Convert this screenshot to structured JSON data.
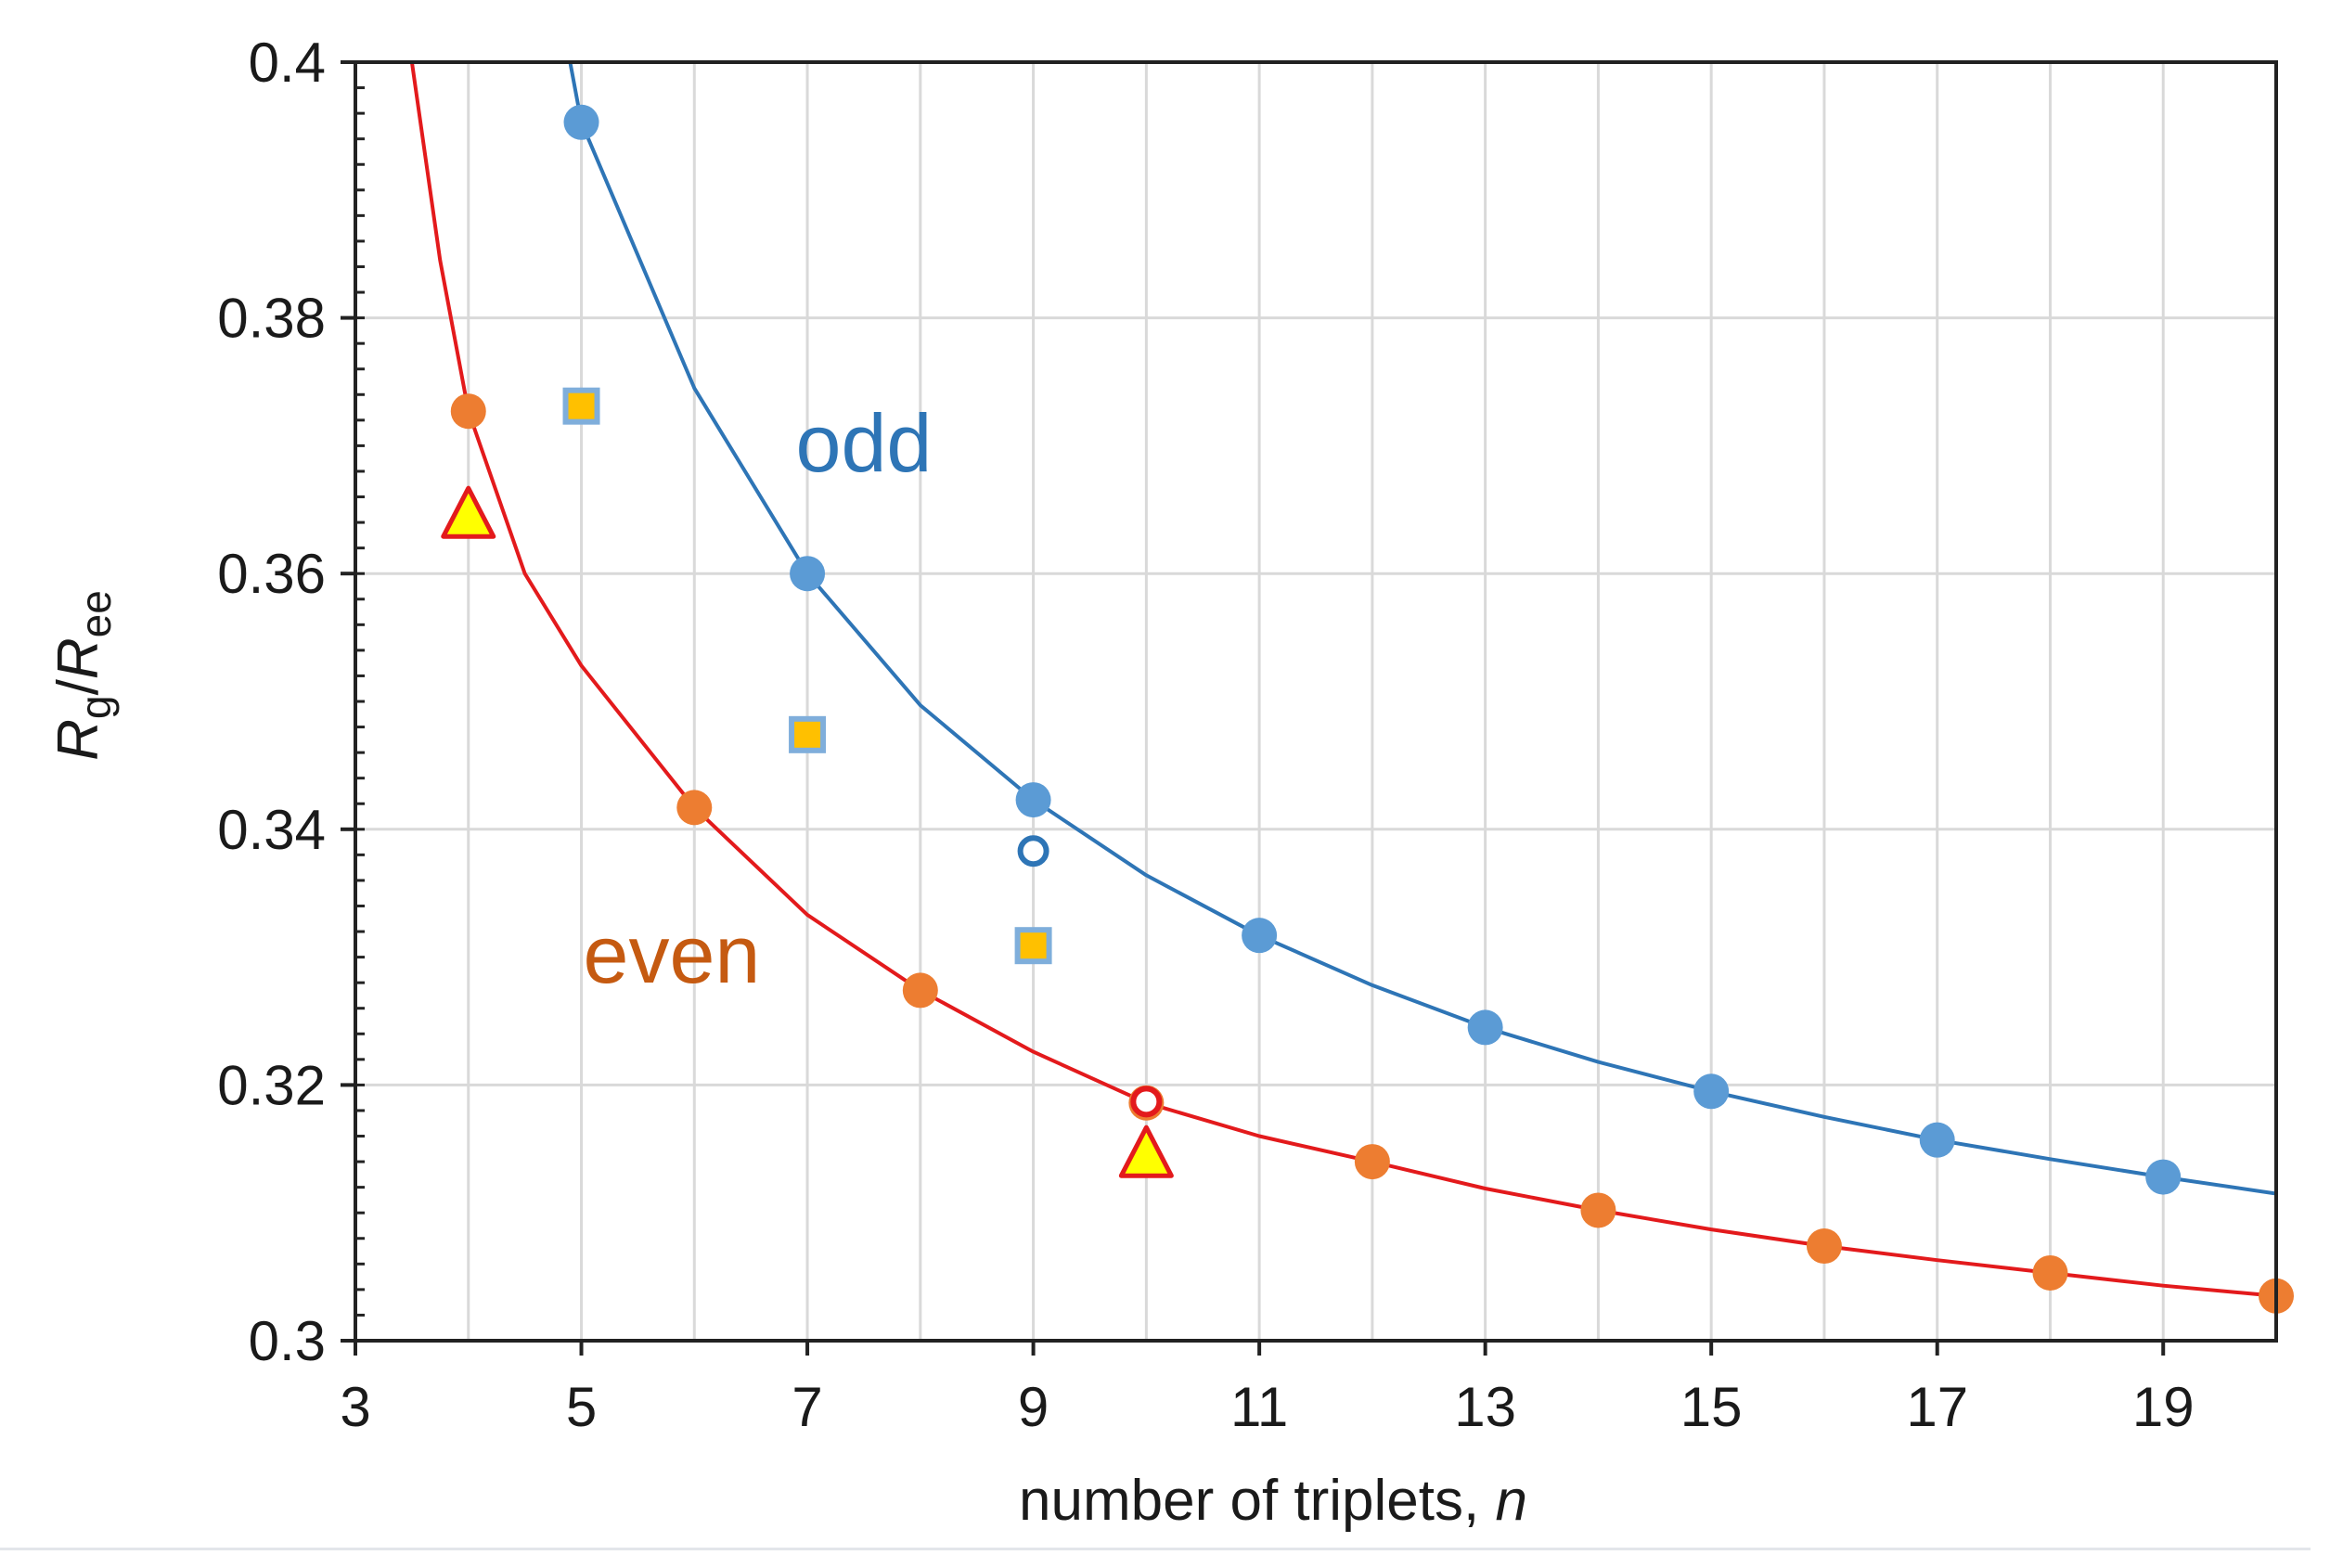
{
  "chart_data": {
    "type": "scatter",
    "title": "",
    "xlabel": "number of triplets, ",
    "xlabel_italic": "n",
    "ylabel": {
      "main1": "R",
      "sub1": "g",
      "slash": "/",
      "main2": "R",
      "sub2": "ee"
    },
    "xlim": [
      3,
      20
    ],
    "ylim": [
      0.3,
      0.4
    ],
    "x_ticks": [
      3,
      5,
      7,
      9,
      11,
      13,
      15,
      17,
      19
    ],
    "y_ticks": [
      0.3,
      0.32,
      0.34,
      0.36,
      0.38,
      0.4
    ],
    "y_tick_labels": [
      "0.3",
      "0.32",
      "0.34",
      "0.36",
      "0.38",
      "0.4"
    ],
    "grid": true,
    "annotations": [
      {
        "text": "odd",
        "x": 7.5,
        "y": 0.368,
        "color": "#2e75b6"
      },
      {
        "text": "even",
        "x": 5.8,
        "y": 0.328,
        "color": "#c55a11"
      }
    ],
    "series": [
      {
        "name": "odd data",
        "marker": "filled-circle",
        "color": "#5b9bd5",
        "x": [
          5,
          7,
          9,
          11,
          13,
          15,
          17,
          19
        ],
        "y": [
          0.3953,
          0.36,
          0.3423,
          0.3317,
          0.3245,
          0.3195,
          0.3157,
          0.3128
        ]
      },
      {
        "name": "even data",
        "marker": "filled-circle",
        "color": "#ed7d31",
        "x": [
          4,
          6,
          8,
          10,
          12,
          14,
          16,
          18,
          20
        ],
        "y": [
          0.3727,
          0.3417,
          0.3274,
          0.3186,
          0.314,
          0.3102,
          0.3074,
          0.3053,
          0.3035
        ]
      },
      {
        "name": "odd fit",
        "type": "line",
        "color": "#2e75b6",
        "x": [
          4.9,
          5,
          6,
          7,
          8,
          9,
          10,
          11,
          12,
          13,
          14,
          15,
          16,
          17,
          18,
          19,
          20
        ],
        "y": [
          0.4,
          0.3953,
          0.3745,
          0.36,
          0.3497,
          0.3423,
          0.3364,
          0.3317,
          0.3278,
          0.3245,
          0.3218,
          0.3195,
          0.3175,
          0.3157,
          0.3142,
          0.3128,
          0.3115
        ]
      },
      {
        "name": "even fit",
        "type": "line",
        "color": "#e31a1c",
        "x": [
          3.5,
          3.75,
          4,
          4.5,
          5,
          6,
          7,
          8,
          9,
          10,
          11,
          12,
          13,
          14,
          15,
          16,
          17,
          18,
          19,
          20
        ],
        "y": [
          0.4,
          0.3845,
          0.3727,
          0.36,
          0.3528,
          0.3417,
          0.3333,
          0.3274,
          0.3226,
          0.3186,
          0.316,
          0.314,
          0.3119,
          0.3102,
          0.3087,
          0.3074,
          0.3063,
          0.3053,
          0.3043,
          0.3035
        ]
      },
      {
        "name": "squares",
        "marker": "square",
        "color": "#ffc000",
        "edge": "#7faedb",
        "x": [
          5,
          7,
          9
        ],
        "y": [
          0.3731,
          0.3474,
          0.3309
        ]
      },
      {
        "name": "triangles",
        "marker": "triangle",
        "color": "#ffff00",
        "edge": "#e31a1c",
        "x": [
          4,
          10
        ],
        "y": [
          0.3645,
          0.3145
        ]
      },
      {
        "name": "open odd",
        "marker": "open-circle",
        "color": "#2e75b6",
        "x": [
          9
        ],
        "y": [
          0.3383
        ]
      },
      {
        "name": "open even",
        "marker": "open-circle",
        "color": "#e31a1c",
        "x": [
          10
        ],
        "y": [
          0.3187
        ]
      }
    ]
  }
}
